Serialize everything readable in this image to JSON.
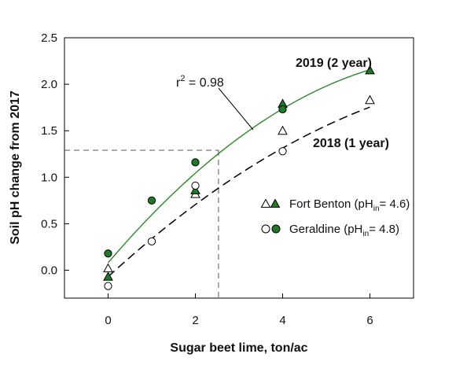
{
  "chart_data": {
    "type": "scatter",
    "xlabel": "Sugar beet lime, ton/ac",
    "ylabel": "Soil pH change from 2017",
    "xlim": [
      -1,
      7
    ],
    "ylim": [
      -0.3,
      2.5
    ],
    "x_ticks": [
      "0",
      "2",
      "4",
      "6"
    ],
    "y_ticks": [
      "0.0",
      "0.5",
      "1.0",
      "1.5",
      "2.0",
      "2.5"
    ],
    "x_tick_values": [
      0,
      2,
      4,
      6
    ],
    "y_tick_values": [
      0.0,
      0.5,
      1.0,
      1.5,
      2.0,
      2.5
    ],
    "grid": false,
    "legend_position": "right-middle",
    "colors": {
      "green": "#1e7b24",
      "line2019": "#2a8a2a",
      "black": "#000000"
    },
    "series": [
      {
        "site": "Fort Benton",
        "year": "2018",
        "marker": "triangle-open",
        "x": [
          0,
          2,
          4,
          6
        ],
        "y": [
          0.02,
          0.82,
          1.5,
          1.83
        ]
      },
      {
        "site": "Fort Benton",
        "year": "2019",
        "marker": "triangle-filled",
        "x": [
          0,
          2,
          4,
          6
        ],
        "y": [
          -0.07,
          0.86,
          1.79,
          2.15
        ]
      },
      {
        "site": "Geraldine",
        "year": "2018",
        "marker": "circle-open",
        "x": [
          0,
          1,
          2,
          4
        ],
        "y": [
          -0.17,
          0.31,
          0.91,
          1.28
        ]
      },
      {
        "site": "Geraldine",
        "year": "2019",
        "marker": "circle-filled",
        "x": [
          0,
          1,
          2,
          4
        ],
        "y": [
          0.18,
          0.75,
          1.16,
          1.73
        ]
      }
    ],
    "fits": [
      {
        "label": "2019 (2 year)",
        "style": "solid-green",
        "x_range": [
          0,
          6
        ],
        "coef": [
          0.08,
          0.55,
          -0.034
        ]
      },
      {
        "label": "2018 (1 year)",
        "style": "dashed-black",
        "x_range": [
          0,
          6
        ],
        "coef": [
          -0.07,
          0.43,
          -0.021
        ]
      }
    ],
    "annotation": {
      "r_label": "r",
      "r_superscript": "2",
      "r_value": " = 0.98"
    },
    "reference_lines": {
      "y": 1.29,
      "x": 2.53
    },
    "legend": [
      {
        "text": "Fort Benton (pH",
        "sub": "in",
        "tail": "= 4.6)",
        "marker": "triangle"
      },
      {
        "text": "Geraldine (pH",
        "sub": "in",
        "tail": "= 4.8)",
        "marker": "circle"
      }
    ]
  }
}
